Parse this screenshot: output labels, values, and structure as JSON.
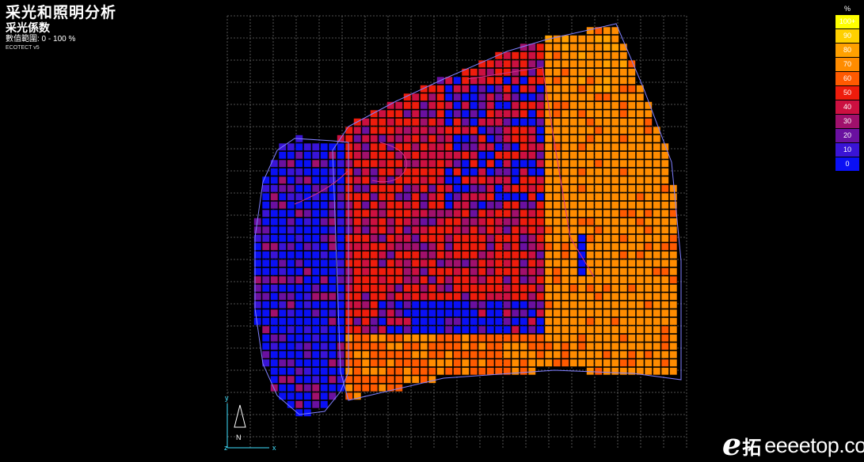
{
  "header": {
    "title": "采光和照明分析",
    "subtitle": "采光係数",
    "range": "數值範圍: 0 - 100 %",
    "version": "ECOTECT v5"
  },
  "legend": {
    "unit": "%",
    "items": [
      {
        "label": "100+",
        "color": "#ffff00"
      },
      {
        "label": "90",
        "color": "#ffd000"
      },
      {
        "label": "80",
        "color": "#ffa000"
      },
      {
        "label": "70",
        "color": "#ff8c00"
      },
      {
        "label": "60",
        "color": "#ff5a00"
      },
      {
        "label": "50",
        "color": "#ee1c0c"
      },
      {
        "label": "40",
        "color": "#cc1040"
      },
      {
        "label": "30",
        "color": "#a0106c"
      },
      {
        "label": "20",
        "color": "#6a10a0"
      },
      {
        "label": "10",
        "color": "#3a14d6"
      },
      {
        "label": "0",
        "color": "#0a10f5"
      }
    ]
  },
  "colors": {
    "background": "#000000",
    "grid": "#6a6a6a",
    "outline": "#7f7fff",
    "axis": "#40e0ff",
    "mesh": "#000000"
  },
  "axes": {
    "x_label": "x",
    "y_label": "y",
    "z_label": "z",
    "north_label": "N"
  },
  "watermark": {
    "logo": "e",
    "cn": "拓",
    "text": "eeeetop.com"
  }
}
